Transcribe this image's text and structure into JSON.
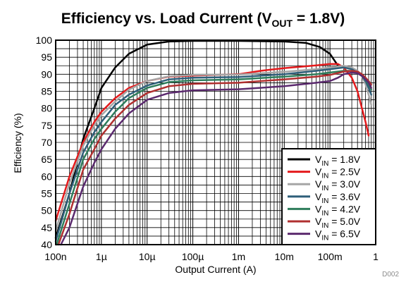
{
  "chart_data": {
    "type": "line",
    "title": {
      "prefix": "Efficiency vs. Load Current (V",
      "subscript": "OUT",
      "suffix": " = 1.8V)"
    },
    "xlabel": "Output Current (A)",
    "ylabel": "Efficiency (%)",
    "x_scale": "log",
    "xlim": [
      1e-07,
      1
    ],
    "ylim": [
      40,
      100
    ],
    "x_ticks": [
      {
        "value": 1e-07,
        "label": "100n"
      },
      {
        "value": 1e-06,
        "label": "1µ"
      },
      {
        "value": 1e-05,
        "label": "10µ"
      },
      {
        "value": 0.0001,
        "label": "100µ"
      },
      {
        "value": 0.001,
        "label": "1m"
      },
      {
        "value": 0.01,
        "label": "10m"
      },
      {
        "value": 0.1,
        "label": "100m"
      },
      {
        "value": 1,
        "label": "1"
      }
    ],
    "y_ticks": [
      40,
      45,
      50,
      55,
      60,
      65,
      70,
      75,
      80,
      85,
      90,
      95,
      100
    ],
    "grid": true,
    "legend_position": "bottom-right",
    "series": [
      {
        "name": {
          "prefix": "V",
          "subscript": "IN",
          "suffix": " = 1.8V"
        },
        "color": "#000000",
        "points": [
          [
            1e-07,
            42
          ],
          [
            2e-07,
            55
          ],
          [
            4e-07,
            71
          ],
          [
            7e-07,
            80
          ],
          [
            1e-06,
            86
          ],
          [
            2e-06,
            92
          ],
          [
            4e-06,
            96
          ],
          [
            1e-05,
            98.7
          ],
          [
            3e-05,
            99.6
          ],
          [
            0.0001,
            99.8
          ],
          [
            0.001,
            99.8
          ],
          [
            0.01,
            99.6
          ],
          [
            0.03,
            99.2
          ],
          [
            0.06,
            98
          ],
          [
            0.1,
            96
          ],
          [
            0.15,
            92.5
          ]
        ]
      },
      {
        "name": {
          "prefix": "V",
          "subscript": "IN",
          "suffix": " = 2.5V"
        },
        "color": "#e41a1c",
        "points": [
          [
            1e-07,
            47
          ],
          [
            2e-07,
            60
          ],
          [
            4e-07,
            70
          ],
          [
            7e-07,
            76
          ],
          [
            1e-06,
            79
          ],
          [
            2e-06,
            83
          ],
          [
            4e-06,
            86
          ],
          [
            1e-05,
            88
          ],
          [
            3e-05,
            89.3
          ],
          [
            0.0001,
            89.6
          ],
          [
            0.001,
            90
          ],
          [
            0.003,
            91
          ],
          [
            0.01,
            91.8
          ],
          [
            0.05,
            92.6
          ],
          [
            0.1,
            93
          ],
          [
            0.15,
            93
          ],
          [
            0.2,
            92
          ],
          [
            0.3,
            89
          ],
          [
            0.4,
            85
          ],
          [
            0.5,
            80
          ],
          [
            0.6,
            76
          ],
          [
            0.7,
            72
          ]
        ]
      },
      {
        "name": {
          "prefix": "V",
          "subscript": "IN",
          "suffix": " = 3.0V"
        },
        "color": "#a6a6a6",
        "points": [
          [
            1e-07,
            44
          ],
          [
            2e-07,
            58
          ],
          [
            4e-07,
            69
          ],
          [
            7e-07,
            75
          ],
          [
            1e-06,
            78
          ],
          [
            2e-06,
            82
          ],
          [
            4e-06,
            85.5
          ],
          [
            1e-05,
            88
          ],
          [
            3e-05,
            89.4
          ],
          [
            0.0001,
            89.8
          ],
          [
            0.001,
            89.9
          ],
          [
            0.01,
            90.7
          ],
          [
            0.05,
            91.5
          ],
          [
            0.1,
            92
          ],
          [
            0.2,
            92.5
          ],
          [
            0.3,
            92
          ],
          [
            0.4,
            91
          ],
          [
            0.5,
            89.5
          ],
          [
            0.6,
            87
          ],
          [
            0.7,
            84
          ],
          [
            0.8,
            81
          ]
        ]
      },
      {
        "name": {
          "prefix": "V",
          "subscript": "IN",
          "suffix": " = 3.6V"
        },
        "color": "#2f5f7a",
        "points": [
          [
            1e-07,
            41
          ],
          [
            2e-07,
            55
          ],
          [
            4e-07,
            67
          ],
          [
            7e-07,
            73
          ],
          [
            1e-06,
            76
          ],
          [
            2e-06,
            81
          ],
          [
            4e-06,
            84
          ],
          [
            1e-05,
            86.7
          ],
          [
            3e-05,
            88.5
          ],
          [
            0.0001,
            89
          ],
          [
            0.001,
            89.2
          ],
          [
            0.01,
            90
          ],
          [
            0.05,
            91
          ],
          [
            0.1,
            91.5
          ],
          [
            0.2,
            92
          ],
          [
            0.3,
            91.5
          ],
          [
            0.4,
            90.5
          ],
          [
            0.5,
            89.5
          ],
          [
            0.6,
            88
          ],
          [
            0.7,
            86
          ],
          [
            0.8,
            84
          ]
        ]
      },
      {
        "name": {
          "prefix": "V",
          "subscript": "IN",
          "suffix": " = 4.2V"
        },
        "color": "#2e7d5b",
        "points": [
          [
            1.05e-07,
            40
          ],
          [
            2e-07,
            52
          ],
          [
            4e-07,
            65
          ],
          [
            7e-07,
            71
          ],
          [
            1e-06,
            74
          ],
          [
            2e-06,
            79
          ],
          [
            4e-06,
            83
          ],
          [
            1e-05,
            86
          ],
          [
            3e-05,
            87.7
          ],
          [
            0.0001,
            88.2
          ],
          [
            0.001,
            88.5
          ],
          [
            0.01,
            89.3
          ],
          [
            0.05,
            90
          ],
          [
            0.1,
            90.5
          ],
          [
            0.2,
            91
          ],
          [
            0.3,
            91
          ],
          [
            0.4,
            90.5
          ],
          [
            0.5,
            89.5
          ],
          [
            0.6,
            88.5
          ],
          [
            0.7,
            87
          ],
          [
            0.8,
            85.5
          ]
        ]
      },
      {
        "name": {
          "prefix": "V",
          "subscript": "IN",
          "suffix": " = 5.0V"
        },
        "color": "#b03030",
        "points": [
          [
            1.15e-07,
            40
          ],
          [
            2e-07,
            49
          ],
          [
            4e-07,
            62
          ],
          [
            7e-07,
            68
          ],
          [
            1e-06,
            72
          ],
          [
            2e-06,
            77
          ],
          [
            4e-06,
            81
          ],
          [
            1e-05,
            84.5
          ],
          [
            3e-05,
            86.5
          ],
          [
            0.0001,
            87.2
          ],
          [
            0.001,
            87.5
          ],
          [
            0.01,
            88.5
          ],
          [
            0.05,
            89.3
          ],
          [
            0.1,
            89.8
          ],
          [
            0.2,
            90.8
          ],
          [
            0.3,
            91
          ],
          [
            0.4,
            90.8
          ],
          [
            0.5,
            90
          ],
          [
            0.6,
            89
          ],
          [
            0.7,
            88
          ],
          [
            0.8,
            87
          ]
        ]
      },
      {
        "name": {
          "prefix": "V",
          "subscript": "IN",
          "suffix": " = 6.5V"
        },
        "color": "#5b2a6e",
        "points": [
          [
            1.3e-07,
            40
          ],
          [
            2e-07,
            45
          ],
          [
            4e-07,
            57
          ],
          [
            7e-07,
            64
          ],
          [
            1e-06,
            68
          ],
          [
            2e-06,
            74
          ],
          [
            4e-06,
            78.5
          ],
          [
            1e-05,
            82.5
          ],
          [
            3e-05,
            84.5
          ],
          [
            0.0001,
            85.3
          ],
          [
            0.001,
            85.6
          ],
          [
            0.01,
            86.5
          ],
          [
            0.05,
            87.5
          ],
          [
            0.1,
            88
          ],
          [
            0.15,
            89
          ],
          [
            0.2,
            90
          ],
          [
            0.3,
            90.5
          ],
          [
            0.4,
            90.3
          ],
          [
            0.5,
            89.5
          ],
          [
            0.6,
            88.5
          ],
          [
            0.7,
            87.5
          ],
          [
            0.8,
            86
          ]
        ]
      }
    ],
    "footnote": "D002"
  }
}
